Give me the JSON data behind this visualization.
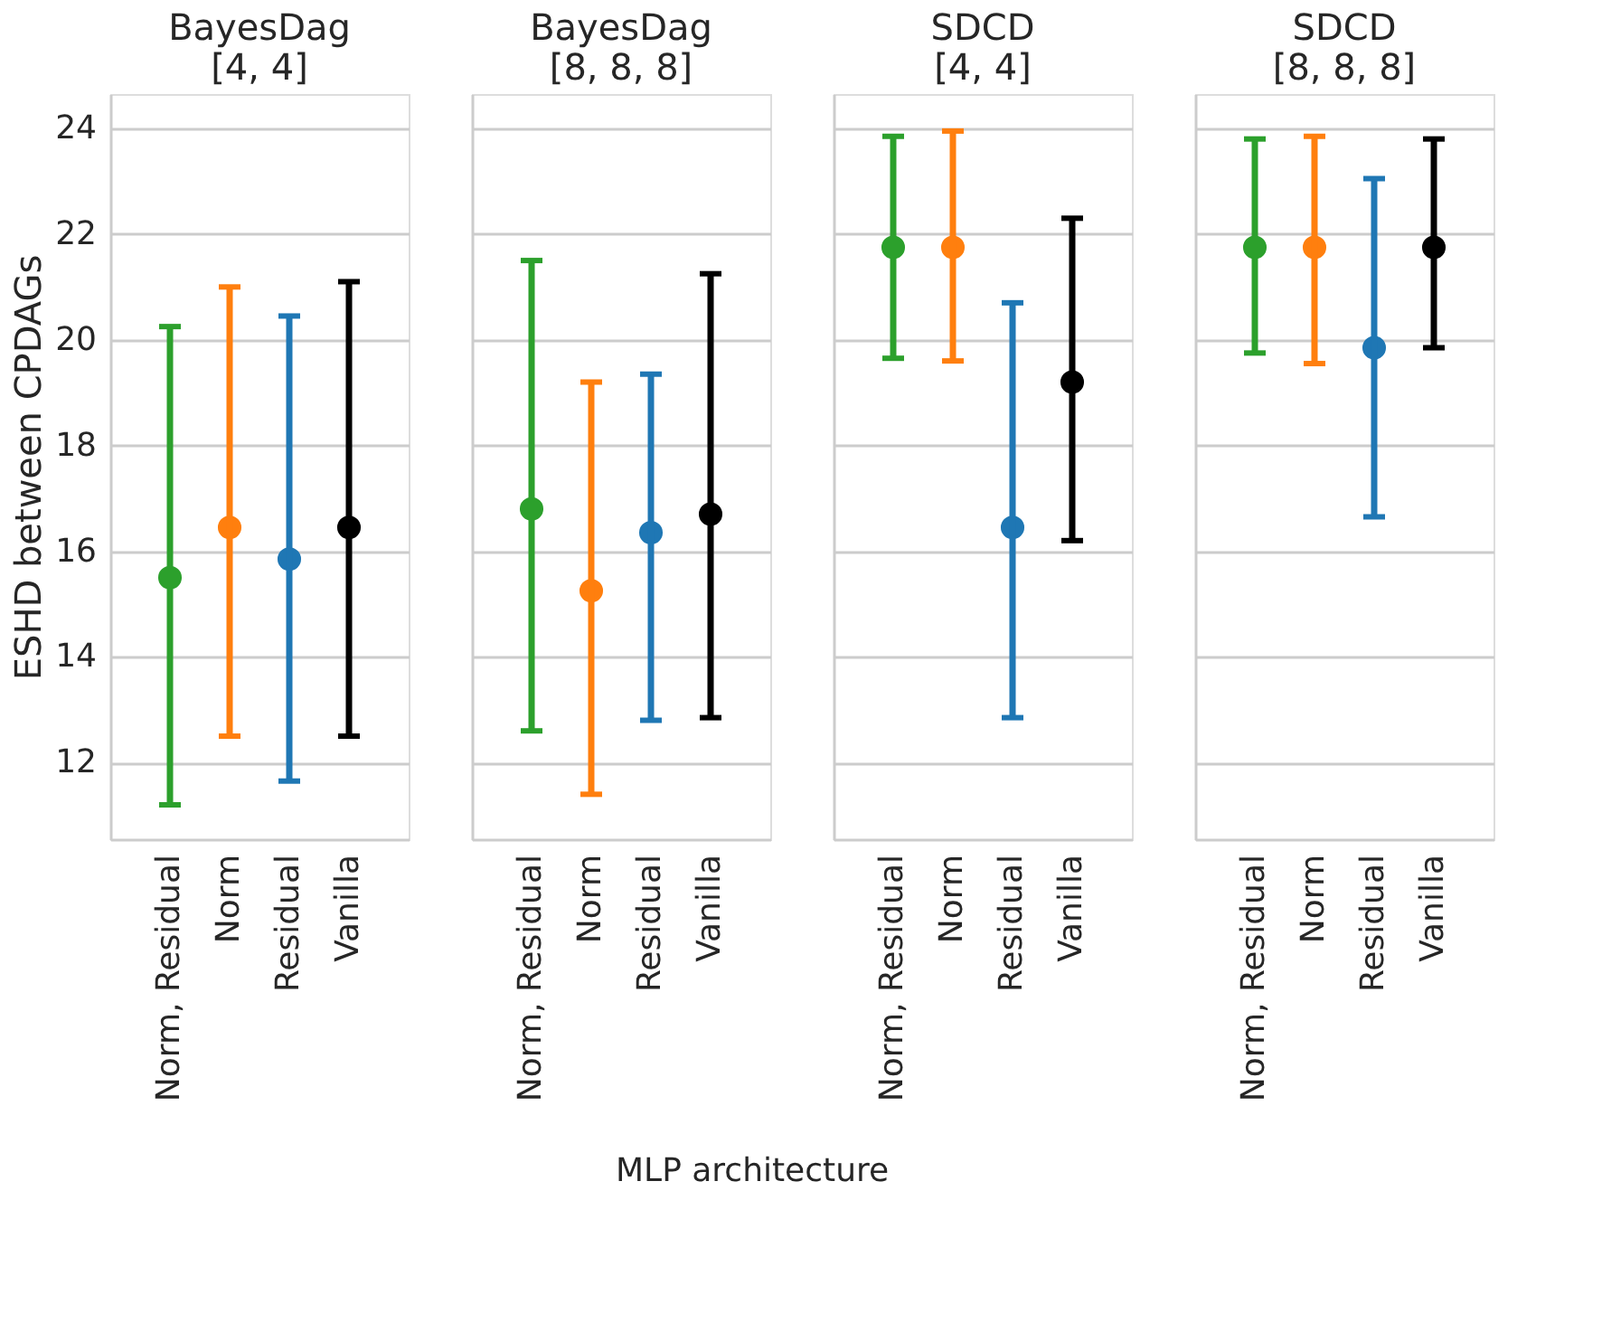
{
  "chart_data": [
    {
      "type": "scatter",
      "title": "BayesDag\n[4, 4]",
      "ylabel": "ESHD between CPDAGs",
      "categories": [
        "Norm, Residual",
        "Norm",
        "Residual",
        "Vanilla"
      ],
      "values": [
        15.5,
        16.45,
        15.85,
        16.45
      ],
      "errors": [
        [
          11.2,
          20.25
        ],
        [
          12.5,
          21.0
        ],
        [
          11.65,
          20.45
        ],
        [
          12.5,
          21.1
        ]
      ],
      "colors": [
        "#2ca02c",
        "#ff7f0e",
        "#1f77b4",
        "#000000"
      ],
      "ylim": [
        10.55,
        24.65
      ],
      "yticks": [
        12,
        14,
        16,
        18,
        20,
        22,
        24
      ],
      "grid": "y"
    },
    {
      "type": "scatter",
      "title": "BayesDag\n[8, 8, 8]",
      "xlabel": "MLP architecture",
      "categories": [
        "Norm, Residual",
        "Norm",
        "Residual",
        "Vanilla"
      ],
      "values": [
        16.8,
        15.25,
        16.35,
        16.7
      ],
      "errors": [
        [
          12.6,
          21.5
        ],
        [
          11.4,
          19.2
        ],
        [
          12.8,
          19.35
        ],
        [
          12.85,
          21.25
        ]
      ],
      "colors": [
        "#2ca02c",
        "#ff7f0e",
        "#1f77b4",
        "#000000"
      ],
      "ylim": [
        10.55,
        24.65
      ],
      "yticks": [
        12,
        14,
        16,
        18,
        20,
        22,
        24
      ],
      "grid": "y",
      "tick_labels": "x"
    },
    {
      "type": "scatter",
      "title": "SDCD\n[4, 4]",
      "categories": [
        "Norm, Residual",
        "Norm",
        "Residual",
        "Vanilla"
      ],
      "values": [
        21.75,
        21.75,
        16.45,
        19.2
      ],
      "errors": [
        [
          19.65,
          23.85
        ],
        [
          19.6,
          23.95
        ],
        [
          12.85,
          20.7
        ],
        [
          16.2,
          22.3
        ]
      ],
      "colors": [
        "#2ca02c",
        "#ff7f0e",
        "#1f77b4",
        "#000000"
      ],
      "ylim": [
        10.55,
        24.65
      ],
      "yticks": [
        12,
        14,
        16,
        18,
        20,
        22,
        24
      ],
      "grid": "y",
      "tick_labels": "x"
    },
    {
      "type": "scatter",
      "title": "SDCD\n[8, 8, 8]",
      "categories": [
        "Norm, Residual",
        "Norm",
        "Residual",
        "Vanilla"
      ],
      "values": [
        21.75,
        21.75,
        19.85,
        21.75
      ],
      "errors": [
        [
          19.75,
          23.8
        ],
        [
          19.55,
          23.85
        ],
        [
          16.65,
          23.05
        ],
        [
          19.85,
          23.8
        ]
      ],
      "colors": [
        "#2ca02c",
        "#ff7f0e",
        "#1f77b4",
        "#000000"
      ],
      "ylim": [
        10.55,
        24.65
      ],
      "yticks": [
        12,
        14,
        16,
        18,
        20,
        22,
        24
      ],
      "grid": "y",
      "tick_labels": "x"
    }
  ]
}
